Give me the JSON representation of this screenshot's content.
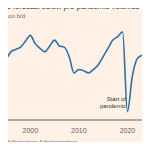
{
  "chart_data": {
    "type": "line",
    "title": "se forecast below pre-pandemic volumes",
    "subtitle": "illion b/d",
    "source": "y Information Administration",
    "annotations": [
      "Start of pandemic"
    ],
    "x": [
      1995,
      1996,
      1997,
      1998,
      1999,
      2000,
      2001,
      2002,
      2003,
      2004,
      2005,
      2006,
      2007,
      2008,
      2009,
      2010,
      2011,
      2012,
      2013,
      2014,
      2015,
      2016,
      2017,
      2018,
      2019,
      2020,
      2021,
      2022,
      2023
    ],
    "values": [
      1.51,
      1.58,
      1.6,
      1.62,
      1.67,
      1.72,
      1.65,
      1.61,
      1.58,
      1.63,
      1.68,
      1.63,
      1.62,
      1.54,
      1.4,
      1.43,
      1.42,
      1.4,
      1.43,
      1.47,
      1.54,
      1.61,
      1.68,
      1.71,
      1.75,
      1.07,
      1.37,
      1.52,
      1.55
    ],
    "color": "#2f6fa8",
    "xlim": [
      1995,
      2023
    ],
    "xticks": [
      2000,
      2010,
      2020
    ],
    "ylim": [
      1.0,
      1.8
    ],
    "tick_labels": "x"
  }
}
